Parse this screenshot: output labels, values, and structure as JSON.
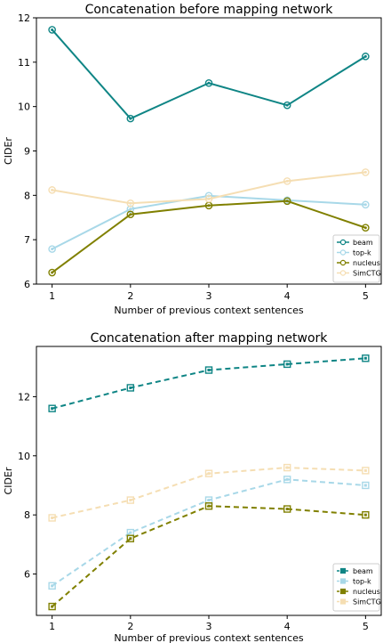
{
  "chart_data": [
    {
      "type": "line",
      "title": "Concatenation before mapping network",
      "xlabel": "Number of previous context sentences",
      "ylabel": "CIDEr",
      "x": [
        1,
        2,
        3,
        4,
        5
      ],
      "xlim": [
        0.8,
        5.2
      ],
      "ylim": [
        6,
        12
      ],
      "yticks": [
        6,
        7,
        8,
        9,
        10,
        11,
        12
      ],
      "line_style": "solid",
      "marker": "circle",
      "grid": false,
      "legend_position": "bottom-right",
      "series": [
        {
          "name": "beam",
          "color": "#0f8585",
          "values": [
            11.73,
            9.73,
            10.53,
            10.03,
            11.13
          ]
        },
        {
          "name": "top-k",
          "color": "#a8d8e8",
          "values": [
            6.79,
            7.69,
            7.99,
            7.89,
            7.79
          ]
        },
        {
          "name": "nucleus",
          "color": "#808000",
          "values": [
            6.26,
            7.57,
            7.77,
            7.87,
            7.27
          ]
        },
        {
          "name": "SimCTG",
          "color": "#f5deb3",
          "values": [
            8.12,
            7.82,
            7.92,
            8.32,
            8.52
          ]
        }
      ]
    },
    {
      "type": "line",
      "title": "Concatenation after mapping network",
      "xlabel": "Number of previous context sentences",
      "ylabel": "CIDEr",
      "x": [
        1,
        2,
        3,
        4,
        5
      ],
      "xlim": [
        0.8,
        5.2
      ],
      "ylim": [
        4.6,
        13.7
      ],
      "yticks": [
        6,
        8,
        10,
        12
      ],
      "line_style": "dashed",
      "marker": "square",
      "grid": false,
      "legend_position": "bottom-right",
      "series": [
        {
          "name": "beam",
          "color": "#0f8585",
          "values": [
            11.6,
            12.3,
            12.9,
            13.1,
            13.3
          ]
        },
        {
          "name": "top-k",
          "color": "#a8d8e8",
          "values": [
            5.6,
            7.4,
            8.5,
            9.2,
            9.0
          ]
        },
        {
          "name": "nucleus",
          "color": "#808000",
          "values": [
            4.9,
            7.2,
            8.3,
            8.2,
            8.0
          ]
        },
        {
          "name": "SimCTG",
          "color": "#f5deb3",
          "values": [
            7.9,
            8.5,
            9.4,
            9.6,
            9.5
          ]
        }
      ]
    }
  ]
}
